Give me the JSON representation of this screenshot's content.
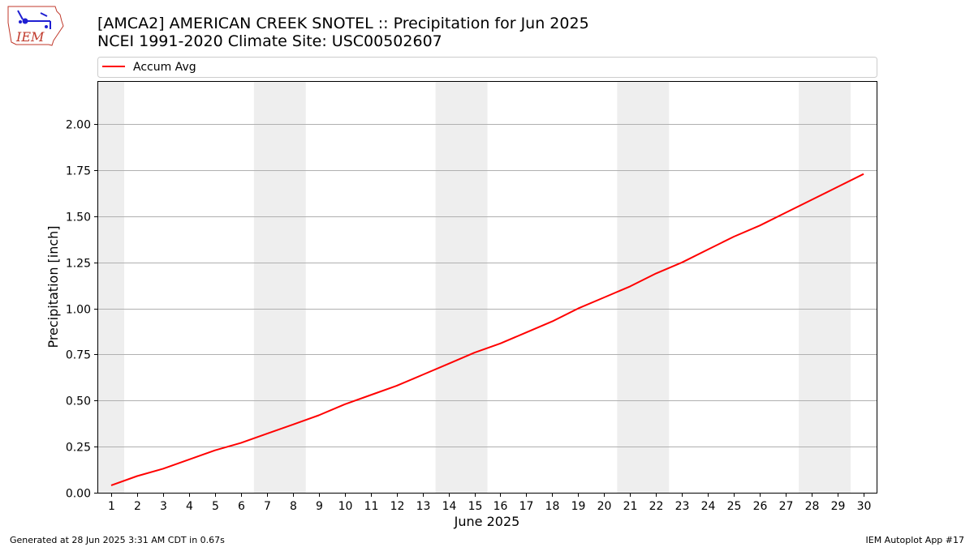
{
  "logo": {
    "text": "IEM",
    "outline_color": "#c0392b",
    "icon_color": "#1f1fd2"
  },
  "chart_data": {
    "type": "line",
    "title": "[AMCA2] AMERICAN CREEK SNOTEL :: Precipitation for Jun 2025",
    "subtitle": "NCEI 1991-2020 Climate Site: USC00502607",
    "xlabel": "June 2025",
    "ylabel": "Precipitation [inch]",
    "x": [
      1,
      2,
      3,
      4,
      5,
      6,
      7,
      8,
      9,
      10,
      11,
      12,
      13,
      14,
      15,
      16,
      17,
      18,
      19,
      20,
      21,
      22,
      23,
      24,
      25,
      26,
      27,
      28,
      29,
      30
    ],
    "xlim": [
      0.5,
      30.5
    ],
    "ylim": [
      0,
      2.23
    ],
    "yticks": [
      0.0,
      0.25,
      0.5,
      0.75,
      1.0,
      1.25,
      1.5,
      1.75,
      2.0
    ],
    "ytick_labels": [
      "0.00",
      "0.25",
      "0.50",
      "0.75",
      "1.00",
      "1.25",
      "1.50",
      "1.75",
      "2.00"
    ],
    "grid": "horizontal",
    "weekend_shading": [
      [
        0.5,
        1.5
      ],
      [
        6.5,
        8.5
      ],
      [
        13.5,
        15.5
      ],
      [
        20.5,
        22.5
      ],
      [
        27.5,
        29.5
      ]
    ],
    "weekend_color": "#eeeeee",
    "legend": "top",
    "series": [
      {
        "name": "Accum Avg",
        "color": "#ff0000",
        "values": [
          0.04,
          0.09,
          0.13,
          0.18,
          0.23,
          0.27,
          0.32,
          0.37,
          0.42,
          0.48,
          0.53,
          0.58,
          0.64,
          0.7,
          0.76,
          0.81,
          0.87,
          0.93,
          1.0,
          1.06,
          1.12,
          1.19,
          1.25,
          1.32,
          1.39,
          1.45,
          1.52,
          1.59,
          1.66,
          1.73
        ]
      }
    ]
  },
  "footer": {
    "generated": "Generated at 28 Jun 2025 3:31 AM CDT in 0.67s",
    "app": "IEM Autoplot App #17"
  }
}
